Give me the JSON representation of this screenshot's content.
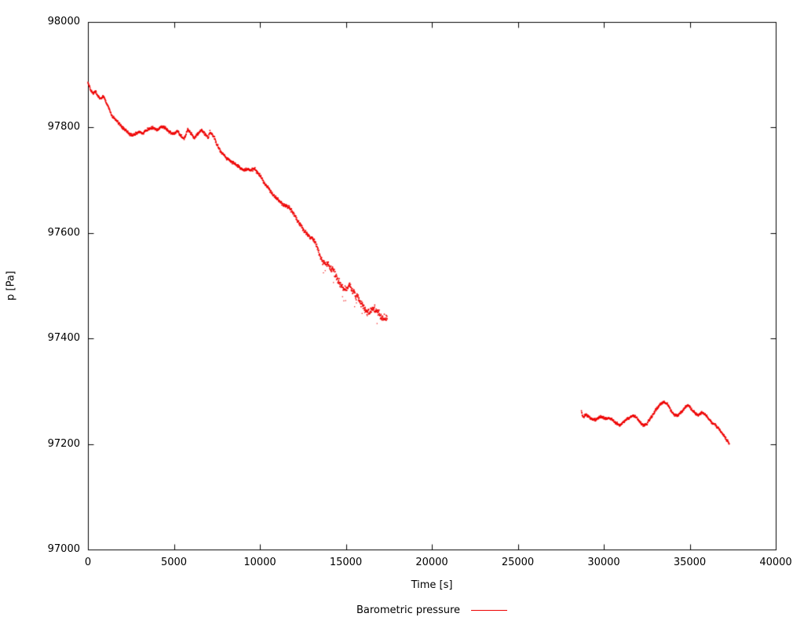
{
  "chart_data": {
    "type": "scatter",
    "title": "",
    "xlabel": "Time [s]",
    "ylabel": "p [Pa]",
    "xlim": [
      0,
      40000
    ],
    "ylim": [
      97000,
      98000
    ],
    "xticks": [
      0,
      5000,
      10000,
      15000,
      20000,
      25000,
      30000,
      35000,
      40000
    ],
    "yticks": [
      97000,
      97200,
      97400,
      97600,
      97800,
      98000
    ],
    "grid": false,
    "legend_position": "bottom-center",
    "sample_step": 15,
    "legend": {
      "label": "Barometric pressure"
    },
    "series": [
      {
        "name": "Barometric pressure",
        "color": "#ee0000",
        "segments": [
          {
            "noise": [
              [
                0,
                3
              ],
              [
                12000,
                4
              ],
              [
                13200,
                5
              ],
              [
                13600,
                8
              ],
              [
                14500,
                9
              ],
              [
                17400,
                8
              ]
            ],
            "outliers": {
              "t_from": 13400,
              "t_to": 17400,
              "probability": 0.06,
              "offset_min": 6,
              "offset_max": 26
            },
            "points": [
              [
                0,
                97885
              ],
              [
                150,
                97872
              ],
              [
                300,
                97865
              ],
              [
                450,
                97868
              ],
              [
                600,
                97858
              ],
              [
                750,
                97855
              ],
              [
                900,
                97860
              ],
              [
                1050,
                97848
              ],
              [
                1200,
                97838
              ],
              [
                1400,
                97822
              ],
              [
                1600,
                97815
              ],
              [
                1800,
                97808
              ],
              [
                2000,
                97800
              ],
              [
                2200,
                97795
              ],
              [
                2400,
                97788
              ],
              [
                2600,
                97785
              ],
              [
                2800,
                97790
              ],
              [
                3000,
                97792
              ],
              [
                3200,
                97788
              ],
              [
                3400,
                97795
              ],
              [
                3600,
                97798
              ],
              [
                3800,
                97800
              ],
              [
                4000,
                97795
              ],
              [
                4200,
                97800
              ],
              [
                4400,
                97802
              ],
              [
                4600,
                97795
              ],
              [
                4800,
                97790
              ],
              [
                5000,
                97788
              ],
              [
                5200,
                97793
              ],
              [
                5400,
                97785
              ],
              [
                5600,
                97778
              ],
              [
                5800,
                97795
              ],
              [
                6000,
                97788
              ],
              [
                6200,
                97780
              ],
              [
                6400,
                97788
              ],
              [
                6600,
                97795
              ],
              [
                6800,
                97788
              ],
              [
                7000,
                97780
              ],
              [
                7100,
                97792
              ],
              [
                7300,
                97785
              ],
              [
                7500,
                97768
              ],
              [
                7700,
                97755
              ],
              [
                7900,
                97748
              ],
              [
                8100,
                97740
              ],
              [
                8300,
                97737
              ],
              [
                8500,
                97732
              ],
              [
                8700,
                97728
              ],
              [
                8900,
                97722
              ],
              [
                9100,
                97718
              ],
              [
                9300,
                97722
              ],
              [
                9500,
                97718
              ],
              [
                9700,
                97722
              ],
              [
                9900,
                97712
              ],
              [
                10100,
                97705
              ],
              [
                10300,
                97692
              ],
              [
                10500,
                97685
              ],
              [
                10700,
                97675
              ],
              [
                10900,
                97668
              ],
              [
                11100,
                97662
              ],
              [
                11300,
                97655
              ],
              [
                11500,
                97652
              ],
              [
                11700,
                97648
              ],
              [
                11900,
                97640
              ],
              [
                12100,
                97628
              ],
              [
                12300,
                97618
              ],
              [
                12500,
                97608
              ],
              [
                12700,
                97600
              ],
              [
                12900,
                97592
              ],
              [
                13100,
                97588
              ],
              [
                13300,
                97578
              ],
              [
                13450,
                97560
              ],
              [
                13600,
                97548
              ],
              [
                13800,
                97542
              ],
              [
                14000,
                97540
              ],
              [
                14200,
                97532
              ],
              [
                14400,
                97522
              ],
              [
                14600,
                97508
              ],
              [
                14800,
                97498
              ],
              [
                15000,
                97492
              ],
              [
                15200,
                97500
              ],
              [
                15400,
                97490
              ],
              [
                15600,
                97480
              ],
              [
                15800,
                97472
              ],
              [
                16000,
                97462
              ],
              [
                16200,
                97452
              ],
              [
                16400,
                97448
              ],
              [
                16600,
                97458
              ],
              [
                16800,
                97452
              ],
              [
                17000,
                97444
              ],
              [
                17200,
                97440
              ],
              [
                17400,
                97436
              ]
            ]
          },
          {
            "noise": [
              [
                28700,
                3
              ],
              [
                37300,
                3
              ]
            ],
            "outliers": null,
            "points": [
              [
                28700,
                97262
              ],
              [
                28800,
                97250
              ],
              [
                28950,
                97256
              ],
              [
                29100,
                97252
              ],
              [
                29300,
                97248
              ],
              [
                29500,
                97246
              ],
              [
                29700,
                97250
              ],
              [
                29900,
                97252
              ],
              [
                30100,
                97248
              ],
              [
                30300,
                97250
              ],
              [
                30500,
                97246
              ],
              [
                30700,
                97240
              ],
              [
                30900,
                97236
              ],
              [
                31100,
                97240
              ],
              [
                31300,
                97246
              ],
              [
                31500,
                97250
              ],
              [
                31700,
                97254
              ],
              [
                31900,
                97250
              ],
              [
                32100,
                97242
              ],
              [
                32300,
                97236
              ],
              [
                32500,
                97238
              ],
              [
                32700,
                97248
              ],
              [
                32900,
                97258
              ],
              [
                33100,
                97268
              ],
              [
                33300,
                97276
              ],
              [
                33500,
                97280
              ],
              [
                33700,
                97276
              ],
              [
                33900,
                97264
              ],
              [
                34100,
                97256
              ],
              [
                34300,
                97254
              ],
              [
                34500,
                97260
              ],
              [
                34700,
                97268
              ],
              [
                34900,
                97274
              ],
              [
                35100,
                97266
              ],
              [
                35300,
                97258
              ],
              [
                35500,
                97254
              ],
              [
                35700,
                97260
              ],
              [
                35900,
                97256
              ],
              [
                36100,
                97248
              ],
              [
                36300,
                97240
              ],
              [
                36500,
                97236
              ],
              [
                36700,
                97228
              ],
              [
                36900,
                97220
              ],
              [
                37100,
                97210
              ],
              [
                37300,
                97200
              ]
            ]
          }
        ]
      }
    ]
  }
}
